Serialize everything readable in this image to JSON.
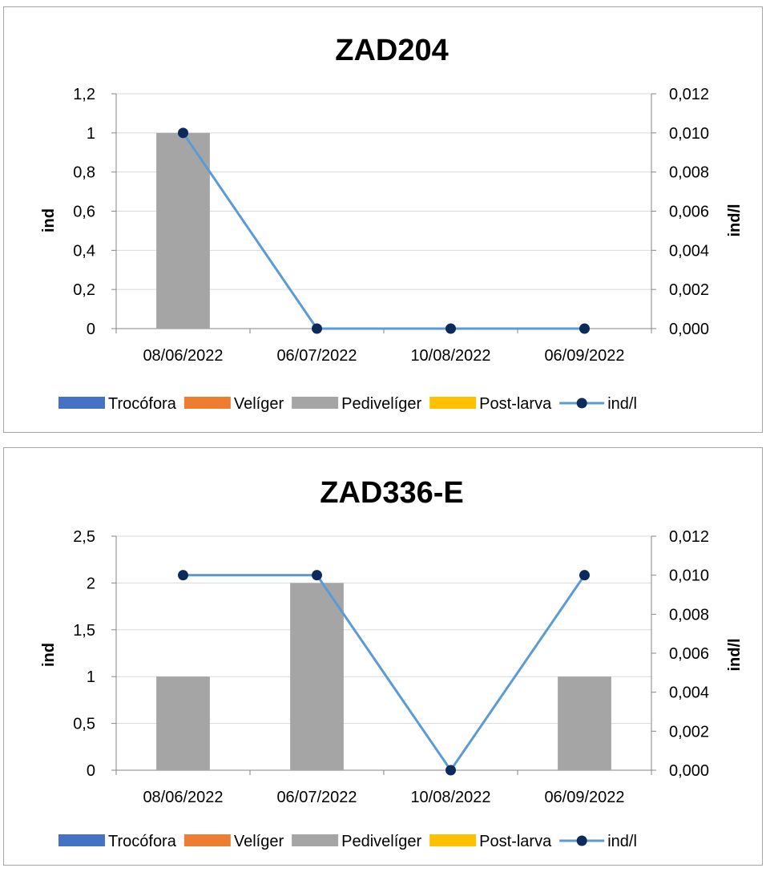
{
  "chart_data": [
    {
      "type": "bar",
      "title": "ZAD204",
      "categories": [
        "08/06/2022",
        "06/07/2022",
        "10/08/2022",
        "06/09/2022"
      ],
      "series": [
        {
          "name": "Trocófora",
          "values": [
            0,
            0,
            0,
            0
          ]
        },
        {
          "name": "Velíger",
          "values": [
            0,
            0,
            0,
            0
          ]
        },
        {
          "name": "Pedivelíger",
          "values": [
            1,
            0,
            0,
            0
          ]
        },
        {
          "name": "Post-larva",
          "values": [
            0,
            0,
            0,
            0
          ]
        }
      ],
      "line_series": {
        "name": "ind/l",
        "axis": "secondary",
        "values": [
          0.01,
          0.0,
          0.0,
          0.0
        ]
      },
      "ylabel": "ind",
      "y2label": "ind/l",
      "ylim": [
        0,
        1.2
      ],
      "y2lim": [
        0,
        0.012
      ],
      "yticks": [
        "0",
        "0,2",
        "0,4",
        "0,6",
        "0,8",
        "1",
        "1,2"
      ],
      "y2ticks": [
        "0,000",
        "0,002",
        "0,004",
        "0,006",
        "0,008",
        "0,010",
        "0,012"
      ],
      "grid": true,
      "legend_position": "bottom"
    },
    {
      "type": "bar",
      "title": "ZAD336-E",
      "categories": [
        "08/06/2022",
        "06/07/2022",
        "10/08/2022",
        "06/09/2022"
      ],
      "series": [
        {
          "name": "Trocófora",
          "values": [
            0,
            0,
            0,
            0
          ]
        },
        {
          "name": "Velíger",
          "values": [
            0,
            0,
            0,
            0
          ]
        },
        {
          "name": "Pedivelíger",
          "values": [
            1,
            2,
            0,
            1
          ]
        },
        {
          "name": "Post-larva",
          "values": [
            0,
            0,
            0,
            0
          ]
        }
      ],
      "line_series": {
        "name": "ind/l",
        "axis": "secondary",
        "values": [
          0.01,
          0.01,
          0.0,
          0.01
        ]
      },
      "ylabel": "ind",
      "y2label": "ind/l",
      "ylim": [
        0,
        2.5
      ],
      "y2lim": [
        0,
        0.012
      ],
      "yticks": [
        "0",
        "0,5",
        "1",
        "1,5",
        "2",
        "2,5"
      ],
      "y2ticks": [
        "0,000",
        "0,002",
        "0,004",
        "0,006",
        "0,008",
        "0,010",
        "0,012"
      ],
      "grid": true,
      "legend_position": "bottom"
    }
  ],
  "colors": {
    "Trocófora": "#4472c4",
    "Velíger": "#ed7d31",
    "Pedivelíger": "#a5a5a5",
    "Post-larva": "#ffc000",
    "line": "#5b9bd5",
    "marker": "#0d2a5c",
    "grid": "#d9d9d9",
    "axis": "#868686"
  }
}
